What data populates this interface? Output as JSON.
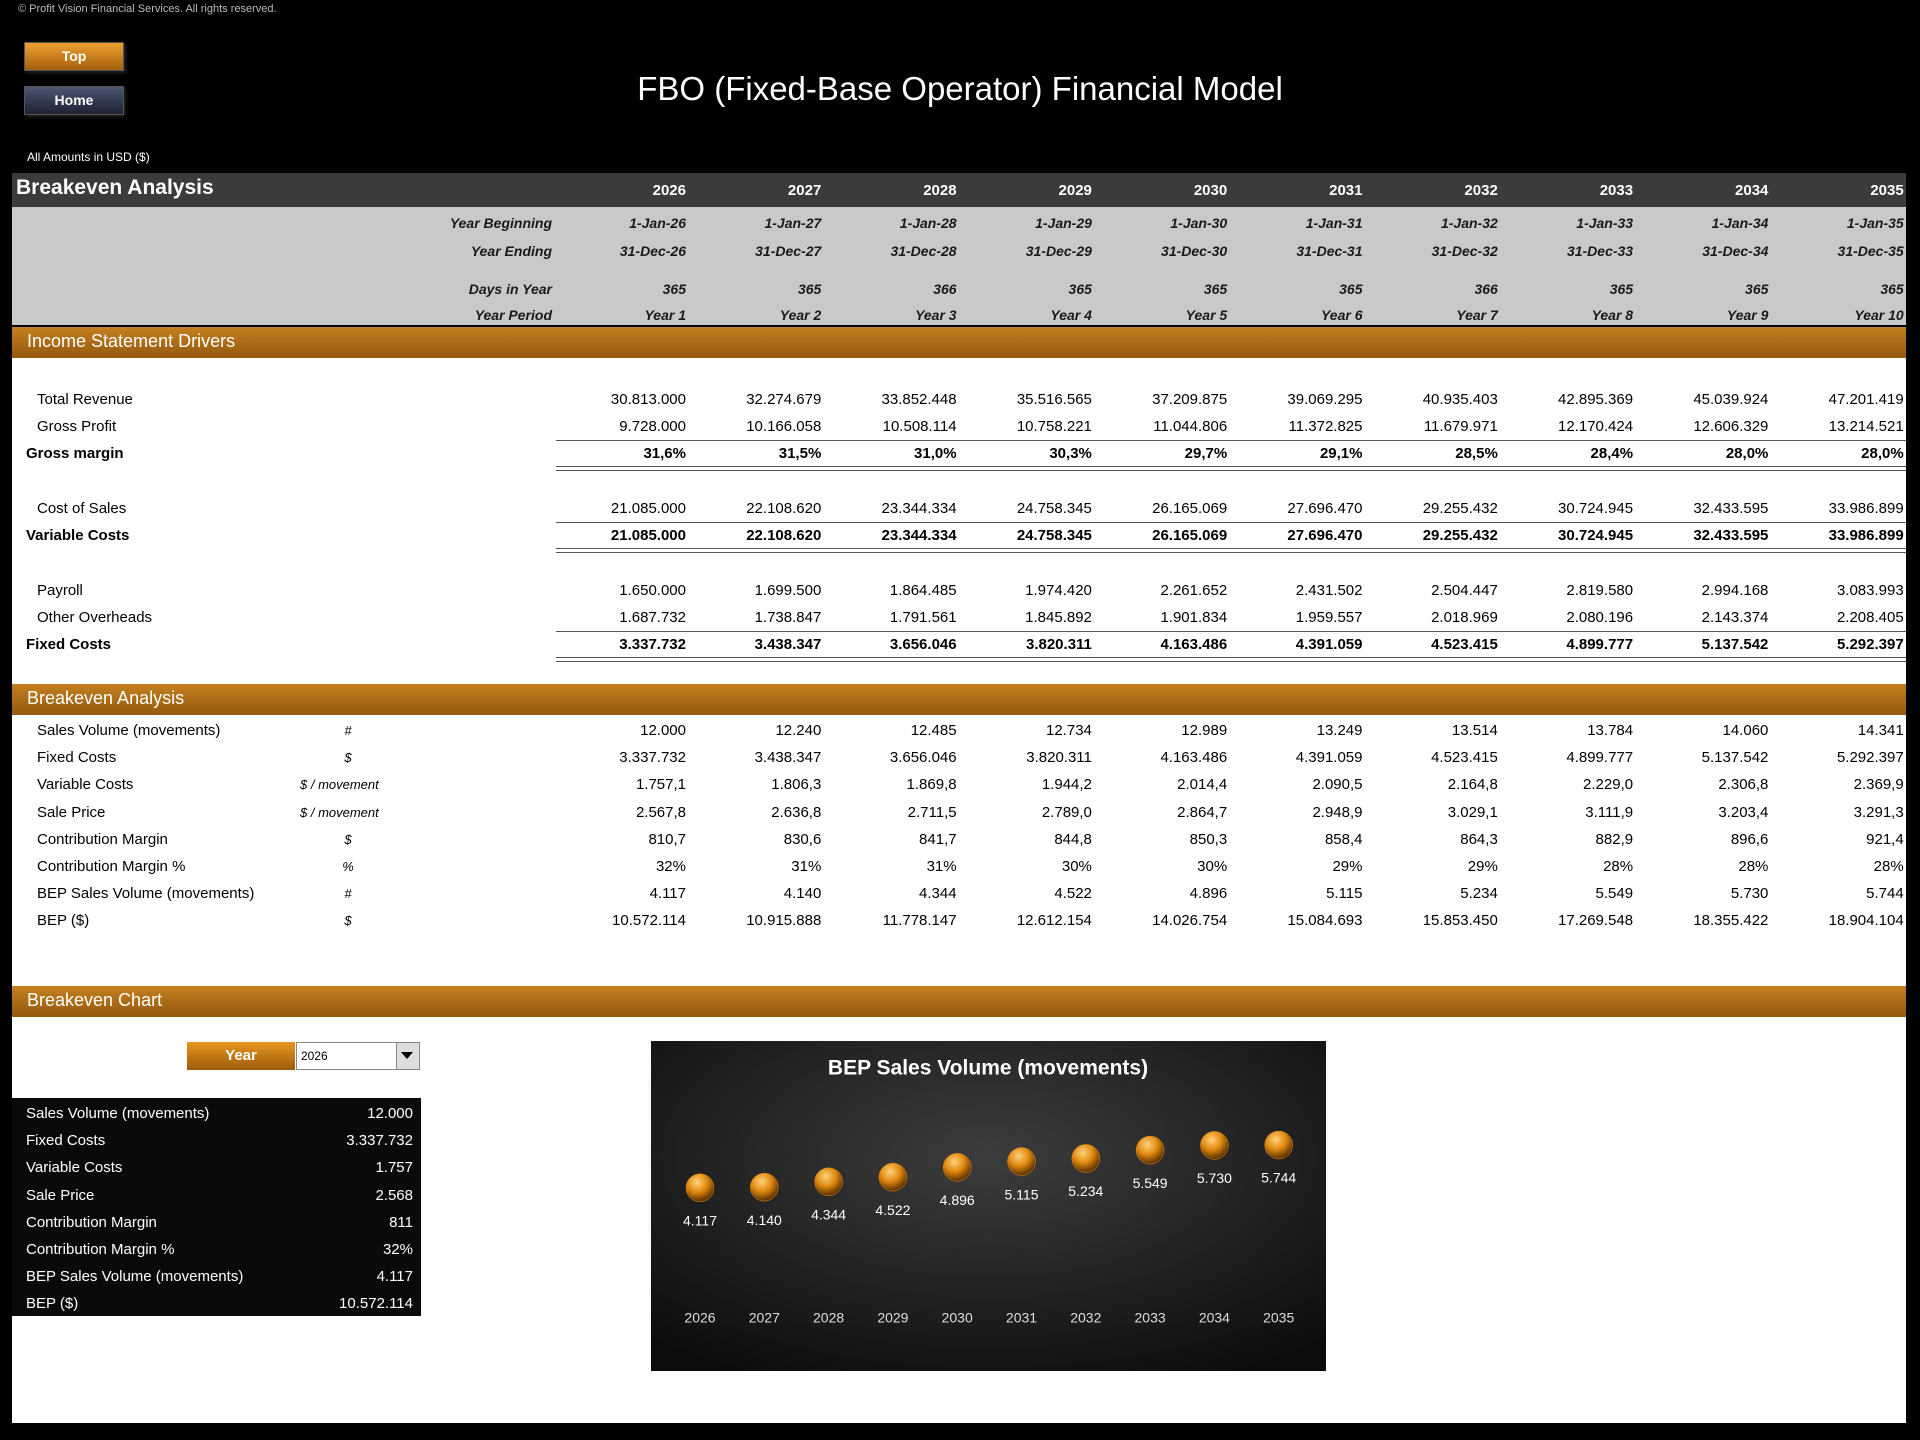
{
  "copyright": "© Profit Vision Financial Services. All rights reserved.",
  "nav": {
    "top": "Top",
    "home": "Home"
  },
  "title": "FBO (Fixed-Base Operator) Financial Model",
  "currency_note": "All Amounts in  USD ($)",
  "header": {
    "title": "Breakeven Analysis",
    "years": [
      "2026",
      "2027",
      "2028",
      "2029",
      "2030",
      "2031",
      "2032",
      "2033",
      "2034",
      "2035"
    ],
    "rows": [
      {
        "label": "Year Beginning",
        "values": [
          "1-Jan-26",
          "1-Jan-27",
          "1-Jan-28",
          "1-Jan-29",
          "1-Jan-30",
          "1-Jan-31",
          "1-Jan-32",
          "1-Jan-33",
          "1-Jan-34",
          "1-Jan-35"
        ]
      },
      {
        "label": "Year Ending",
        "values": [
          "31-Dec-26",
          "31-Dec-27",
          "31-Dec-28",
          "31-Dec-29",
          "31-Dec-30",
          "31-Dec-31",
          "31-Dec-32",
          "31-Dec-33",
          "31-Dec-34",
          "31-Dec-35"
        ]
      },
      {
        "label": "Days in Year",
        "values": [
          "365",
          "365",
          "366",
          "365",
          "365",
          "365",
          "366",
          "365",
          "365",
          "365"
        ]
      },
      {
        "label": "Year Period",
        "values": [
          "Year 1",
          "Year 2",
          "Year 3",
          "Year 4",
          "Year 5",
          "Year 6",
          "Year 7",
          "Year 8",
          "Year 9",
          "Year 10"
        ]
      }
    ]
  },
  "income": {
    "title": "Income Statement Drivers",
    "groups": [
      {
        "rows": [
          {
            "label": "Total Revenue",
            "values": [
              "30.813.000",
              "32.274.679",
              "33.852.448",
              "35.516.565",
              "37.209.875",
              "39.069.295",
              "40.935.403",
              "42.895.369",
              "45.039.924",
              "47.201.419"
            ]
          },
          {
            "label": "Gross Profit",
            "values": [
              "9.728.000",
              "10.166.058",
              "10.508.114",
              "10.758.221",
              "11.044.806",
              "11.372.825",
              "11.679.971",
              "12.170.424",
              "12.606.329",
              "13.214.521"
            ]
          }
        ],
        "total": {
          "label": "Gross margin",
          "values": [
            "31,6%",
            "31,5%",
            "31,0%",
            "30,3%",
            "29,7%",
            "29,1%",
            "28,5%",
            "28,4%",
            "28,0%",
            "28,0%"
          ]
        }
      },
      {
        "rows": [
          {
            "label": "Cost of Sales",
            "values": [
              "21.085.000",
              "22.108.620",
              "23.344.334",
              "24.758.345",
              "26.165.069",
              "27.696.470",
              "29.255.432",
              "30.724.945",
              "32.433.595",
              "33.986.899"
            ]
          }
        ],
        "total": {
          "label": "Variable Costs",
          "values": [
            "21.085.000",
            "22.108.620",
            "23.344.334",
            "24.758.345",
            "26.165.069",
            "27.696.470",
            "29.255.432",
            "30.724.945",
            "32.433.595",
            "33.986.899"
          ]
        }
      },
      {
        "rows": [
          {
            "label": "Payroll",
            "values": [
              "1.650.000",
              "1.699.500",
              "1.864.485",
              "1.974.420",
              "2.261.652",
              "2.431.502",
              "2.504.447",
              "2.819.580",
              "2.994.168",
              "3.083.993"
            ]
          },
          {
            "label": "Other Overheads",
            "values": [
              "1.687.732",
              "1.738.847",
              "1.791.561",
              "1.845.892",
              "1.901.834",
              "1.959.557",
              "2.018.969",
              "2.080.196",
              "2.143.374",
              "2.208.405"
            ]
          }
        ],
        "total": {
          "label": "Fixed Costs",
          "values": [
            "3.337.732",
            "3.438.347",
            "3.656.046",
            "3.820.311",
            "4.163.486",
            "4.391.059",
            "4.523.415",
            "4.899.777",
            "5.137.542",
            "5.292.397"
          ]
        }
      }
    ]
  },
  "breakeven": {
    "title": "Breakeven Analysis",
    "rows": [
      {
        "label": "Sales Volume (movements)",
        "unit": "#",
        "values": [
          "12.000",
          "12.240",
          "12.485",
          "12.734",
          "12.989",
          "13.249",
          "13.514",
          "13.784",
          "14.060",
          "14.341"
        ]
      },
      {
        "label": "Fixed Costs",
        "unit": "$",
        "values": [
          "3.337.732",
          "3.438.347",
          "3.656.046",
          "3.820.311",
          "4.163.486",
          "4.391.059",
          "4.523.415",
          "4.899.777",
          "5.137.542",
          "5.292.397"
        ]
      },
      {
        "label": "Variable Costs",
        "unit": "$ / movement",
        "values": [
          "1.757,1",
          "1.806,3",
          "1.869,8",
          "1.944,2",
          "2.014,4",
          "2.090,5",
          "2.164,8",
          "2.229,0",
          "2.306,8",
          "2.369,9"
        ]
      },
      {
        "label": "Sale Price",
        "unit": "$ / movement",
        "values": [
          "2.567,8",
          "2.636,8",
          "2.711,5",
          "2.789,0",
          "2.864,7",
          "2.948,9",
          "3.029,1",
          "3.111,9",
          "3.203,4",
          "3.291,3"
        ]
      },
      {
        "label": "Contribution Margin",
        "unit": "$",
        "values": [
          "810,7",
          "830,6",
          "841,7",
          "844,8",
          "850,3",
          "858,4",
          "864,3",
          "882,9",
          "896,6",
          "921,4"
        ]
      },
      {
        "label": "Contribution Margin %",
        "unit": "%",
        "values": [
          "32%",
          "31%",
          "31%",
          "30%",
          "30%",
          "29%",
          "29%",
          "28%",
          "28%",
          "28%"
        ]
      },
      {
        "label": "BEP Sales Volume (movements)",
        "unit": "#",
        "values": [
          "4.117",
          "4.140",
          "4.344",
          "4.522",
          "4.896",
          "5.115",
          "5.234",
          "5.549",
          "5.730",
          "5.744"
        ]
      },
      {
        "label": "BEP ($)",
        "unit": "$",
        "values": [
          "10.572.114",
          "10.915.888",
          "11.778.147",
          "12.612.154",
          "14.026.754",
          "15.084.693",
          "15.853.450",
          "17.269.548",
          "18.355.422",
          "18.904.104"
        ]
      }
    ]
  },
  "breakeven_chart": {
    "title": "Breakeven Chart",
    "selector": {
      "label": "Year",
      "value": "2026"
    },
    "summary": [
      {
        "label": "Sales Volume (movements)",
        "value": "12.000"
      },
      {
        "label": "Fixed Costs",
        "value": "3.337.732"
      },
      {
        "label": "Variable Costs",
        "value": "1.757"
      },
      {
        "label": "Sale Price",
        "value": "2.568"
      },
      {
        "label": "Contribution Margin",
        "value": "811"
      },
      {
        "label": "Contribution Margin %",
        "value": "32%"
      },
      {
        "label": "BEP Sales Volume (movements)",
        "value": "4.117"
      },
      {
        "label": "BEP ($)",
        "value": "10.572.114"
      }
    ]
  },
  "chart_data": {
    "type": "dot",
    "title": "BEP Sales Volume (movements)",
    "categories": [
      "2026",
      "2027",
      "2028",
      "2029",
      "2030",
      "2031",
      "2032",
      "2033",
      "2034",
      "2035"
    ],
    "values": [
      4117,
      4140,
      4344,
      4522,
      4896,
      5115,
      5234,
      5549,
      5730,
      5744
    ],
    "value_labels": [
      "4.117",
      "4.140",
      "4.344",
      "4.522",
      "4.896",
      "5.115",
      "5.234",
      "5.549",
      "5.730",
      "5.744"
    ],
    "color": "#e08a10",
    "ylim": [
      0,
      7000
    ]
  }
}
